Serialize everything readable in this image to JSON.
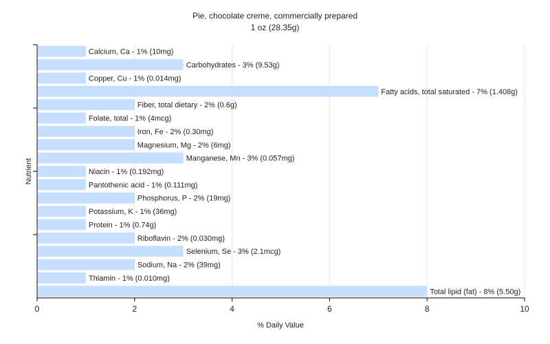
{
  "chart_data": {
    "type": "bar",
    "orientation": "horizontal",
    "title": "Pie, chocolate creme, commercially prepared",
    "subtitle": "1 oz (28.35g)",
    "xlabel": "% Daily Value",
    "ylabel": "Nutrient",
    "xlim": [
      0,
      10
    ],
    "xticks": [
      "0",
      "2",
      "4",
      "6",
      "8",
      "10"
    ],
    "grid": true,
    "bar_color": "#c6deff",
    "categories": [
      "Calcium, Ca",
      "Carbohydrates",
      "Copper, Cu",
      "Fatty acids, total saturated",
      "Fiber, total dietary",
      "Folate, total",
      "Iron, Fe",
      "Magnesium, Mg",
      "Manganese, Mn",
      "Niacin",
      "Pantothenic acid",
      "Phosphorus, P",
      "Potassium, K",
      "Protein",
      "Riboflavin",
      "Selenium, Se",
      "Sodium, Na",
      "Thiamin",
      "Total lipid (fat)"
    ],
    "values": [
      1,
      3,
      1,
      7,
      2,
      1,
      2,
      2,
      3,
      1,
      1,
      2,
      1,
      1,
      2,
      3,
      2,
      1,
      8
    ],
    "labels": [
      "Calcium, Ca - 1% (10mg)",
      "Carbohydrates - 3% (9.53g)",
      "Copper, Cu - 1% (0.014mg)",
      "Fatty acids, total saturated - 7% (1.408g)",
      "Fiber, total dietary - 2% (0.6g)",
      "Folate, total - 1% (4mcg)",
      "Iron, Fe - 2% (0.30mg)",
      "Magnesium, Mg - 2% (6mg)",
      "Manganese, Mn - 3% (0.057mg)",
      "Niacin - 1% (0.192mg)",
      "Pantothenic acid - 1% (0.111mg)",
      "Phosphorus, P - 2% (19mg)",
      "Potassium, K - 1% (36mg)",
      "Protein - 1% (0.74g)",
      "Riboflavin - 2% (0.030mg)",
      "Selenium, Se - 3% (2.1mcg)",
      "Sodium, Na - 2% (39mg)",
      "Thiamin - 1% (0.010mg)",
      "Total lipid (fat) - 8% (5.50g)"
    ]
  }
}
